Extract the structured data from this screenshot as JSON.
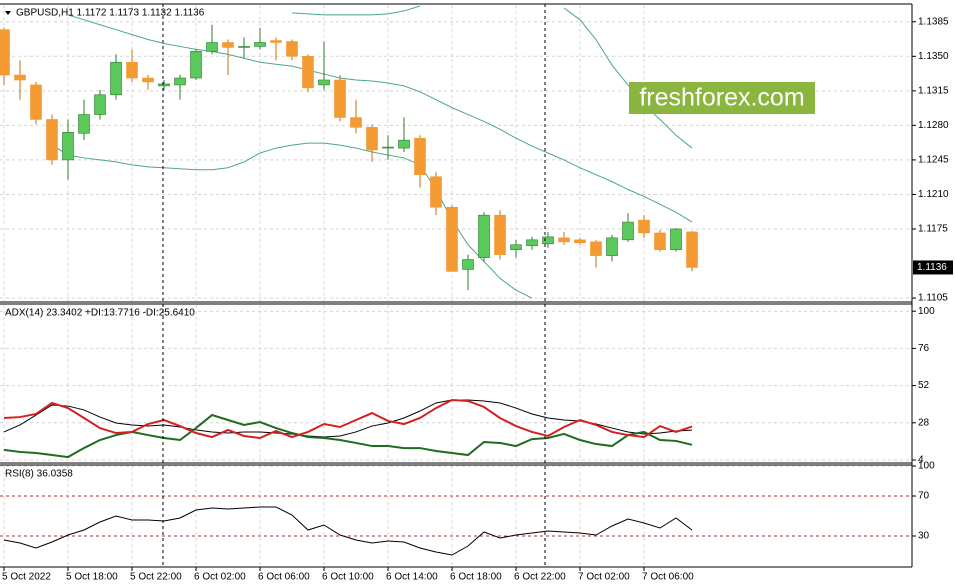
{
  "chart_data": [
    {
      "type": "candlestick",
      "title": "GBPUSD,H1  1.1172 1.1173 1.1132 1.1136",
      "categories": [
        "5 Oct 2022",
        null,
        null,
        null,
        "5 Oct 18:00",
        null,
        null,
        null,
        "5 Oct 22:00",
        null,
        null,
        null,
        "6 Oct 02:00",
        null,
        null,
        null,
        "6 Oct 06:00",
        null,
        null,
        null,
        "6 Oct 10:00",
        null,
        null,
        null,
        "6 Oct 14:00",
        null,
        null,
        null,
        "6 Oct 18:00",
        null,
        null,
        null,
        "6 Oct 22:00",
        null,
        null,
        null,
        "7 Oct 02:00",
        null,
        null,
        null,
        "7 Oct 06:00",
        null,
        null,
        null
      ],
      "open": [
        1.1377,
        1.1331,
        1.1321,
        1.1286,
        1.1245,
        1.1272,
        1.1291,
        1.1311,
        1.1344,
        1.1328,
        1.132,
        1.1321,
        1.1328,
        1.1355,
        1.1364,
        1.1359,
        1.136,
        1.1366,
        1.1365,
        1.135,
        1.1321,
        1.1326,
        1.1288,
        1.1278,
        1.1257,
        1.1257,
        1.1267,
        1.1228,
        1.1197,
        1.1134,
        1.1146,
        1.1189,
        1.1154,
        1.1158,
        1.116,
        1.1166,
        1.1164,
        1.1162,
        1.1148,
        1.1164,
        1.1184,
        1.1171,
        1.1154,
        1.1172
      ],
      "high": [
        1.1379,
        1.1346,
        1.1324,
        1.1291,
        1.1286,
        1.1306,
        1.1316,
        1.1352,
        1.1357,
        1.1331,
        1.1326,
        1.1331,
        1.1357,
        1.1382,
        1.1367,
        1.1369,
        1.1379,
        1.1369,
        1.1367,
        1.1352,
        1.1365,
        1.1331,
        1.1306,
        1.1281,
        1.127,
        1.1288,
        1.127,
        1.1233,
        1.1199,
        1.1149,
        1.1192,
        1.1194,
        1.1164,
        1.1167,
        1.1172,
        1.1172,
        1.1166,
        1.1164,
        1.1169,
        1.1191,
        1.1189,
        1.1174,
        1.1176,
        1.1173
      ],
      "low": [
        1.1321,
        1.1306,
        1.1281,
        1.124,
        1.1225,
        1.1265,
        1.1286,
        1.1306,
        1.1324,
        1.1316,
        1.1316,
        1.1306,
        1.1326,
        1.1352,
        1.1331,
        1.1348,
        1.1357,
        1.1346,
        1.1346,
        1.1314,
        1.1316,
        1.1284,
        1.1272,
        1.1243,
        1.1245,
        1.1253,
        1.1217,
        1.1189,
        1.1132,
        1.1113,
        1.1142,
        1.1144,
        1.1146,
        1.1154,
        1.1156,
        1.1159,
        1.1159,
        1.1136,
        1.1142,
        1.1162,
        1.1166,
        1.1152,
        1.1152,
        1.1132
      ],
      "close": [
        1.1331,
        1.1326,
        1.1286,
        1.1245,
        1.1273,
        1.1291,
        1.1311,
        1.1344,
        1.1328,
        1.1324,
        1.1322,
        1.1328,
        1.1355,
        1.1364,
        1.1359,
        1.136,
        1.1364,
        1.1364,
        1.135,
        1.1318,
        1.1326,
        1.1288,
        1.1278,
        1.1255,
        1.1258,
        1.1265,
        1.123,
        1.1197,
        1.1132,
        1.1144,
        1.1189,
        1.1149,
        1.1159,
        1.1164,
        1.1167,
        1.1162,
        1.1161,
        1.1148,
        1.1166,
        1.1182,
        1.1171,
        1.1154,
        1.1175,
        1.1136
      ],
      "up_color": "#5cc95c",
      "down_color": "#f39a33",
      "bands": [
        {
          "color": "#4aa88a",
          "values": [
            null,
            null,
            null,
            null,
            null,
            null,
            null,
            null,
            null,
            null,
            null,
            null,
            null,
            null,
            null,
            null,
            null,
            null,
            1.1394,
            1.1393,
            1.1392,
            1.1392,
            1.1392,
            1.1392,
            1.1393,
            1.1396,
            1.1401,
            null,
            null,
            null,
            null,
            null,
            null,
            null,
            null,
            1.1399,
            1.1387,
            1.1367,
            1.1341,
            1.1321,
            1.1301,
            1.1286,
            1.127,
            1.1257
          ]
        },
        {
          "color": "#4aa88a",
          "values": [
            null,
            null,
            null,
            null,
            1.1392,
            1.1387,
            1.1382,
            1.1377,
            1.1372,
            1.1367,
            1.1363,
            1.136,
            1.1357,
            1.1355,
            1.1352,
            1.1348,
            1.1344,
            1.1342,
            1.134,
            1.1336,
            1.1332,
            1.1328,
            1.1326,
            1.1325,
            1.1323,
            1.132,
            1.1314,
            1.1306,
            1.1298,
            1.1291,
            1.1284,
            1.1276,
            1.1267,
            1.1259,
            1.1252,
            1.1245,
            1.1237,
            1.123,
            1.1223,
            1.1215,
            1.1208,
            1.12,
            1.1192,
            1.1182
          ]
        },
        {
          "color": "#4aa88a",
          "values": [
            null,
            null,
            null,
            1.126,
            1.125,
            1.1247,
            1.1245,
            1.1243,
            1.124,
            1.1238,
            1.1237,
            1.1236,
            1.1235,
            1.1235,
            1.1237,
            1.1243,
            1.1252,
            1.1257,
            1.126,
            1.1262,
            1.1262,
            1.126,
            1.1257,
            1.1253,
            1.125,
            1.1247,
            1.124,
            1.1215,
            1.1184,
            1.1159,
            1.1142,
            1.1125,
            1.1113,
            1.1105,
            null,
            null,
            null,
            null,
            null,
            null,
            null,
            null,
            null,
            null
          ]
        }
      ],
      "last_price": 1.1136,
      "ylim": [
        1.1101,
        1.1402
      ],
      "yticks": [
        1.1385,
        {
          "value": 1.135,
          "label": "1.1350"
        },
        1.1315,
        {
          "value": 1.128,
          "label": "1.1280"
        },
        1.1245,
        {
          "value": 1.121,
          "label": "1.1210"
        },
        1.1175,
        1.1105
      ],
      "grid": true
    },
    {
      "type": "line",
      "title": "ADX(14) 23.3402 +DI:13.7716 -DI:25.6410",
      "series": [
        {
          "color": "#000000",
          "width": 1,
          "values": [
            22.1,
            26.6,
            33.0,
            39.5,
            38.8,
            36.3,
            31.7,
            27.9,
            26.6,
            25.9,
            26.6,
            25.3,
            23.4,
            22.1,
            21.4,
            22.1,
            22.1,
            21.4,
            20.8,
            19.5,
            18.8,
            19.5,
            22.1,
            25.9,
            27.9,
            31.1,
            35.6,
            40.8,
            42.7,
            42.7,
            42.1,
            40.8,
            37.5,
            33.7,
            31.1,
            29.8,
            29.2,
            27.2,
            24.6,
            22.1,
            20.8,
            21.4,
            22.7,
            23.3
          ]
        },
        {
          "color": "#1f6b1f",
          "width": 2,
          "values": [
            10.5,
            9.2,
            8.5,
            7.2,
            5.9,
            11.7,
            16.9,
            20.1,
            22.1,
            20.1,
            18.2,
            16.9,
            24.6,
            33.0,
            29.8,
            26.6,
            28.5,
            24.6,
            21.4,
            18.8,
            18.2,
            16.9,
            15.0,
            13.0,
            13.0,
            11.7,
            11.7,
            9.8,
            8.5,
            7.2,
            15.6,
            15.0,
            13.0,
            17.5,
            18.2,
            20.8,
            16.9,
            14.3,
            13.0,
            20.1,
            22.1,
            16.9,
            16.3,
            13.8
          ]
        },
        {
          "color": "#d42020",
          "width": 2,
          "values": [
            31.1,
            31.7,
            33.7,
            40.8,
            37.5,
            31.1,
            24.6,
            21.4,
            22.1,
            27.2,
            29.8,
            25.9,
            21.4,
            18.8,
            23.4,
            19.5,
            18.2,
            22.7,
            18.8,
            22.1,
            27.2,
            25.3,
            29.8,
            34.3,
            29.2,
            27.2,
            31.1,
            37.5,
            42.7,
            42.1,
            38.2,
            31.1,
            25.9,
            22.1,
            19.5,
            25.3,
            29.8,
            26.6,
            22.1,
            20.1,
            18.8,
            25.9,
            22.1,
            25.6
          ]
        }
      ],
      "ylim": [
        4,
        104
      ],
      "yticks": [
        100,
        76,
        52,
        28,
        4
      ],
      "grid": true
    },
    {
      "type": "line",
      "title": "RSI(8) 36.0358",
      "series": [
        {
          "color": "#000000",
          "width": 1,
          "values": [
            26,
            23,
            18,
            24,
            31,
            36,
            44,
            50,
            46,
            46,
            45,
            48,
            56,
            58,
            57,
            58,
            59,
            59,
            51,
            36,
            41,
            31,
            26,
            23,
            25,
            24,
            18,
            14,
            11,
            20,
            34,
            28,
            31,
            33,
            35,
            34,
            33,
            31,
            40,
            47,
            43,
            38,
            48,
            36
          ]
        }
      ],
      "levels": [
        70,
        30
      ],
      "levels_color": "#b03030",
      "ylim": [
        0,
        100
      ],
      "yticks": [
        100,
        70,
        30
      ],
      "grid": true
    }
  ],
  "watermark": "freshforex.com"
}
